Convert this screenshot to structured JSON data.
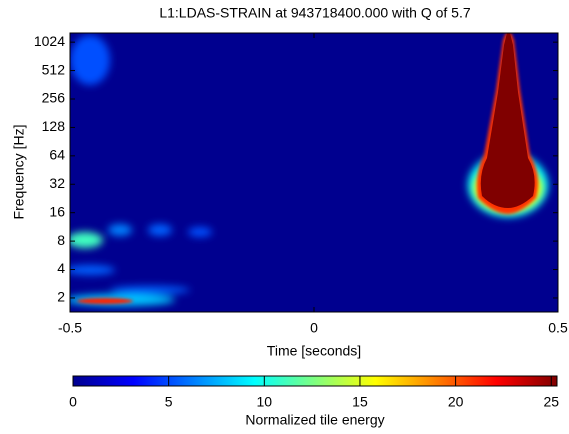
{
  "chart_data": {
    "type": "heatmap",
    "title": "L1:LDAS-STRAIN at 943718400.000 with Q of 5.7",
    "xlabel": "Time [seconds]",
    "ylabel": "Frequency [Hz]",
    "xlim": [
      -0.5,
      0.5
    ],
    "xticks": [
      -0.5,
      0,
      0.5
    ],
    "ylim": [
      1.42,
      1280
    ],
    "yticks": [
      2,
      4,
      8,
      16,
      32,
      64,
      128,
      256,
      512,
      1024
    ],
    "log_y": true,
    "background": "#00008f",
    "colorbar": {
      "label": "Normalized tile energy",
      "lim": [
        0,
        25.3
      ],
      "ticks": [
        0,
        5,
        10,
        15,
        20,
        25
      ],
      "colormap": "jet"
    }
  }
}
